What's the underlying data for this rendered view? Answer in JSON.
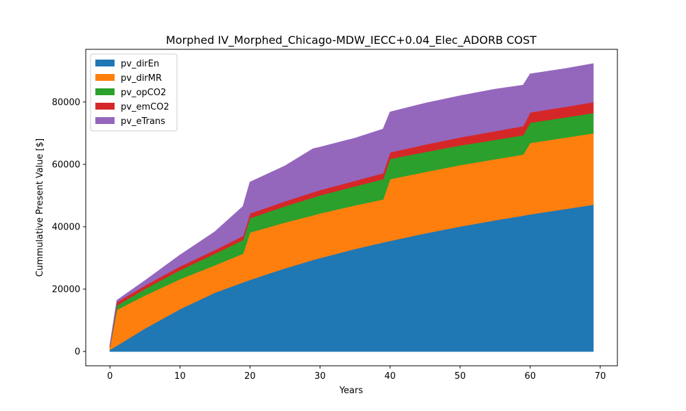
{
  "chart_data": {
    "type": "area",
    "stacked": true,
    "title": "Morphed IV_Morphed_Chicago-MDW_IECC+0.04_Elec_ADORB COST",
    "xlabel": "Years",
    "ylabel": "Cummulative Present Value [$]",
    "xlim": [
      -3.45,
      72.45
    ],
    "ylim": [
      -4600,
      96900
    ],
    "xticks": [
      0,
      10,
      20,
      30,
      40,
      50,
      60,
      70
    ],
    "yticks": [
      0,
      20000,
      40000,
      60000,
      80000
    ],
    "grid": false,
    "legend_position": "top-left",
    "x": [
      0,
      1,
      5,
      10,
      15,
      19,
      20,
      25,
      29,
      30,
      35,
      39,
      40,
      45,
      50,
      55,
      59,
      60,
      65,
      69
    ],
    "series": [
      {
        "name": "pv_dirEn",
        "color": "#1f77b4",
        "values": [
          600,
          1900,
          7400,
          13600,
          18900,
          22200,
          23000,
          26700,
          29400,
          30000,
          32900,
          35000,
          35500,
          37900,
          40100,
          42100,
          43600,
          44000,
          45700,
          47100
        ]
      },
      {
        "name": "pv_dirMR",
        "color": "#ff7f0e",
        "values": [
          800,
          11500,
          10600,
          9600,
          8800,
          9200,
          15200,
          14700,
          14300,
          14300,
          14000,
          13800,
          19800,
          19700,
          19700,
          19600,
          19600,
          22900,
          22900,
          22900
        ]
      },
      {
        "name": "pv_opCO2",
        "color": "#2ca02c",
        "values": [
          200,
          1400,
          2100,
          2900,
          3700,
          4400,
          4600,
          5200,
          5700,
          5800,
          6100,
          6500,
          6500,
          6400,
          6300,
          6200,
          6200,
          6500,
          6500,
          6500
        ]
      },
      {
        "name": "pv_emCO2",
        "color": "#d62728",
        "values": [
          200,
          1100,
          1100,
          1200,
          1200,
          1300,
          1500,
          1600,
          1700,
          1700,
          1800,
          1900,
          2100,
          2400,
          2600,
          2800,
          2900,
          3300,
          3400,
          3500
        ]
      },
      {
        "name": "pv_eTrans",
        "color": "#9467bd",
        "values": [
          200,
          500,
          1500,
          3600,
          5800,
          9400,
          10000,
          11300,
          13900,
          13700,
          13600,
          14100,
          12900,
          13200,
          13300,
          13400,
          13100,
          12300,
          12200,
          12300
        ]
      }
    ]
  }
}
